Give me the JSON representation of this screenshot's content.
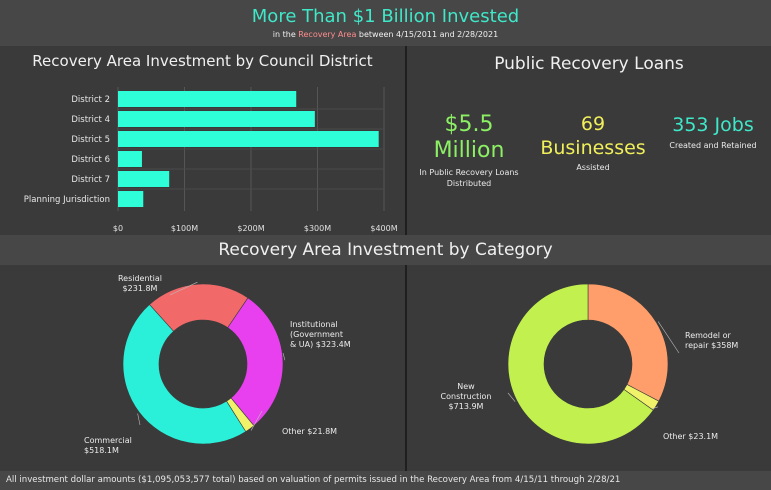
{
  "header": {
    "title": "More Than $1 Billion Invested",
    "subtitle_prefix": "in the",
    "subtitle_highlight": "Recovery Area",
    "subtitle_suffix": "between 4/15/2011 and 2/28/2021"
  },
  "loans": {
    "title": "Public Recovery Loans",
    "kpis": [
      {
        "value_line1": "$5.5",
        "value_line2": "Million",
        "caption_line1": "In Public Recovery Loans",
        "caption_line2": "Distributed",
        "color": "#8cf064"
      },
      {
        "value_line1": "69",
        "value_line2": "Businesses",
        "caption_line1": "Assisted",
        "caption_line2": "",
        "color": "#f0ef5a"
      },
      {
        "value_line1": "353 Jobs",
        "value_line2": "",
        "caption_line1": "Created and Retained",
        "caption_line2": "",
        "color": "#3fe8c8"
      }
    ]
  },
  "category_title": "Recovery Area Investment by Category",
  "footer": "All investment dollar amounts ($1,095,053,577 total) based on valuation of permits issued in the Recovery Area from 4/15/11 through 2/28/21",
  "colors": {
    "accent": "#3fe8c8",
    "bar": "#2effd9"
  },
  "chart_data": [
    {
      "type": "bar",
      "orientation": "horizontal",
      "title": "Recovery Area Investment by Council District",
      "categories": [
        "District 2",
        "District 4",
        "District 5",
        "District 6",
        "District 7",
        "Planning Jurisdiction"
      ],
      "values": [
        268,
        296,
        392,
        36,
        77,
        38
      ],
      "unit": "$M",
      "xlim": [
        0,
        400
      ],
      "xticks": [
        "$0",
        "$100M",
        "$200M",
        "$300M",
        "$400M"
      ],
      "grid": true
    },
    {
      "type": "pie",
      "donut": true,
      "slices": [
        {
          "label_lines": [
            "Residential",
            "$231.8M"
          ],
          "value": 231.8,
          "color": "#f2696a"
        },
        {
          "label_lines": [
            "Institutional",
            "(Government",
            "& UA) $323.4M"
          ],
          "value": 323.4,
          "color": "#e840ee"
        },
        {
          "label_lines": [
            "Other $21.8M"
          ],
          "value": 21.8,
          "color": "#f0f26a"
        },
        {
          "label_lines": [
            "Commercial",
            "$518.1M"
          ],
          "value": 518.1,
          "color": "#2af0da"
        }
      ]
    },
    {
      "type": "pie",
      "donut": true,
      "slices": [
        {
          "label_lines": [
            "Remodel or",
            "repair $358M"
          ],
          "value": 358,
          "color": "#ff9e6a"
        },
        {
          "label_lines": [
            "Other $23.1M"
          ],
          "value": 23.1,
          "color": "#f0f26a"
        },
        {
          "label_lines": [
            "New",
            "Construction",
            "$713.9M"
          ],
          "value": 713.9,
          "color": "#c2f04e"
        }
      ]
    }
  ]
}
